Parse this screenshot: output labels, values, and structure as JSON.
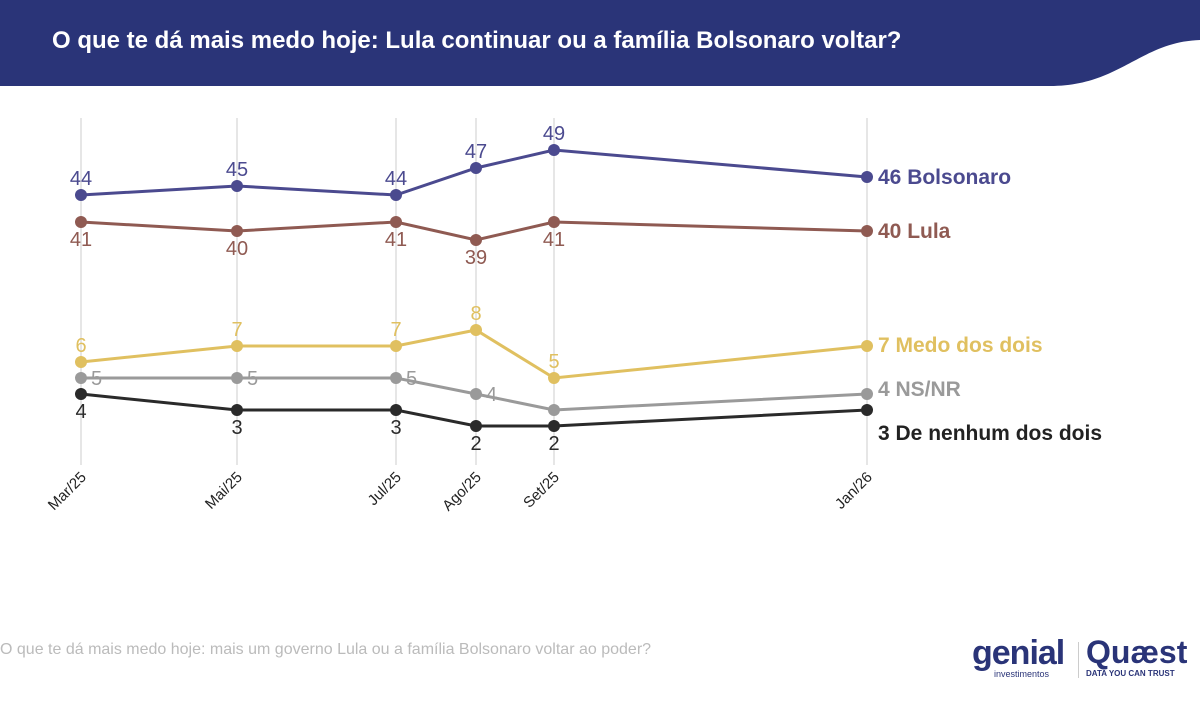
{
  "header": {
    "title": "O que te dá mais medo hoje: Lula continuar ou a família Bolsonaro voltar?"
  },
  "footer": {
    "note": "O que te dá mais medo hoje: mais um governo Lula ou a família Bolsonaro voltar ao poder?",
    "logo1": "genial",
    "logo1_sub": "investimentos",
    "logo2": "Quæst",
    "logo2_sub": "DATA YOU CAN TRUST"
  },
  "colors": {
    "header": "#2a3478"
  },
  "chart_data": {
    "type": "line",
    "title": "O que te dá mais medo hoje: Lula continuar ou a família Bolsonaro voltar?",
    "categories": [
      "Mar/25",
      "Mai/25",
      "Jul/25",
      "Ago/25",
      "Set/25",
      "Jan/26"
    ],
    "series": [
      {
        "name": "Bolsonaro",
        "color": "#4b4a8f",
        "values": [
          44,
          45,
          44,
          47,
          49,
          46
        ],
        "end_label": "46 Bolsonaro",
        "show_labels": [
          true,
          true,
          true,
          true,
          true,
          false
        ],
        "label_pos": "above"
      },
      {
        "name": "Lula",
        "color": "#8f5a52",
        "values": [
          41,
          40,
          41,
          39,
          41,
          40
        ],
        "end_label": "40 Lula",
        "show_labels": [
          true,
          true,
          true,
          true,
          true,
          false
        ],
        "label_pos": "above"
      },
      {
        "name": "Medo dos dois",
        "color": "#e0c060",
        "values": [
          6,
          7,
          7,
          8,
          5,
          7
        ],
        "end_label": "7 Medo dos dois",
        "show_labels": [
          true,
          true,
          true,
          true,
          true,
          false
        ],
        "label_pos": "above"
      },
      {
        "name": "NS/NR",
        "color": "#9a9a9a",
        "values": [
          5,
          5,
          5,
          4,
          3,
          4
        ],
        "end_label": "4 NS/NR",
        "show_labels": [
          true,
          true,
          true,
          true,
          false,
          false
        ],
        "label_pos": "above"
      },
      {
        "name": "De nenhum dos dois",
        "color": "#2a2a2a",
        "values": [
          4,
          3,
          3,
          2,
          2,
          3
        ],
        "end_label": "3 De nenhum dos dois",
        "show_labels": [
          true,
          true,
          true,
          true,
          true,
          false
        ],
        "label_pos": "below"
      }
    ],
    "ylim": [
      2,
      49
    ],
    "grid": "vertical"
  }
}
